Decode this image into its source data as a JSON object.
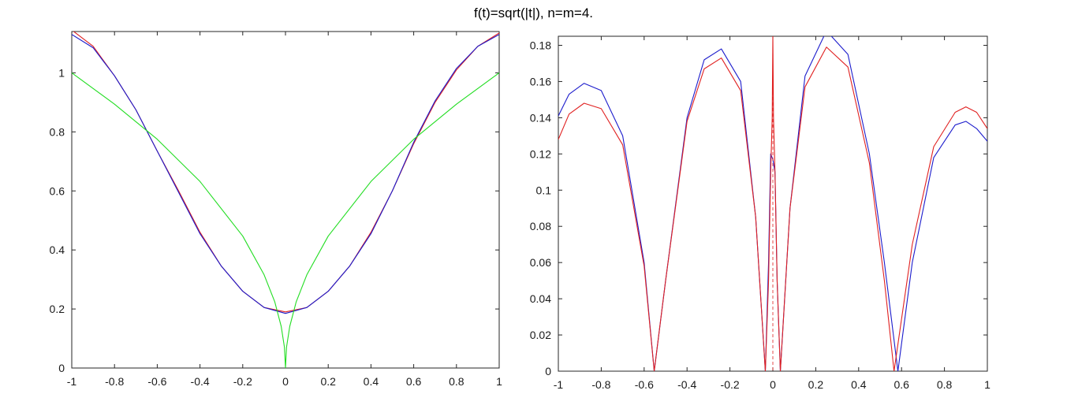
{
  "title": "f(t)=sqrt(|t|), n=m=4.",
  "colors": {
    "red": "#e02020",
    "blue": "#1c1ccc",
    "green": "#22dd22",
    "axes": "#262626"
  },
  "chart_data": [
    {
      "type": "line",
      "xlim": [
        -1,
        1
      ],
      "ylim": [
        0,
        1.14
      ],
      "xticks": [
        "-1",
        "-0.8",
        "-0.6",
        "-0.4",
        "-0.2",
        "0",
        "0.2",
        "0.4",
        "0.6",
        "0.8",
        "1"
      ],
      "yticks": [
        "0",
        "0.2",
        "0.4",
        "0.6",
        "0.8",
        "1"
      ],
      "grid": false,
      "series": [
        {
          "color": "red",
          "x": [
            -1,
            -0.9,
            -0.8,
            -0.7,
            -0.6,
            -0.5,
            -0.4,
            -0.3,
            -0.2,
            -0.1,
            0,
            0.1,
            0.2,
            0.3,
            0.4,
            0.5,
            0.6,
            0.7,
            0.8,
            0.9,
            1
          ],
          "y": [
            1.145,
            1.09,
            0.99,
            0.875,
            0.735,
            0.6,
            0.46,
            0.345,
            0.26,
            0.205,
            0.19,
            0.205,
            0.26,
            0.345,
            0.46,
            0.6,
            0.76,
            0.9,
            1.01,
            1.09,
            1.135
          ]
        },
        {
          "color": "blue",
          "x": [
            -1,
            -0.9,
            -0.8,
            -0.7,
            -0.6,
            -0.5,
            -0.4,
            -0.3,
            -0.2,
            -0.1,
            0,
            0.1,
            0.2,
            0.3,
            0.4,
            0.5,
            0.6,
            0.7,
            0.8,
            0.9,
            1
          ],
          "y": [
            1.13,
            1.085,
            0.99,
            0.875,
            0.735,
            0.595,
            0.455,
            0.345,
            0.26,
            0.205,
            0.185,
            0.205,
            0.26,
            0.345,
            0.455,
            0.6,
            0.765,
            0.905,
            1.015,
            1.09,
            1.13
          ]
        },
        {
          "color": "green",
          "function": "sqrt(|t|)",
          "x": [
            -1,
            -0.8,
            -0.6,
            -0.4,
            -0.2,
            -0.1,
            -0.05,
            -0.02,
            -0.005,
            0,
            0.005,
            0.02,
            0.05,
            0.1,
            0.2,
            0.4,
            0.6,
            0.8,
            1
          ],
          "y": [
            1,
            0.894,
            0.775,
            0.632,
            0.447,
            0.316,
            0.224,
            0.141,
            0.071,
            0,
            0.071,
            0.141,
            0.224,
            0.316,
            0.447,
            0.632,
            0.775,
            0.894,
            1
          ]
        }
      ]
    },
    {
      "type": "line",
      "xlim": [
        -1,
        1
      ],
      "ylim": [
        0,
        0.185
      ],
      "xticks": [
        "-1",
        "-0.8",
        "-0.6",
        "-0.4",
        "-0.2",
        "0",
        "0.2",
        "0.4",
        "0.6",
        "0.8",
        "1"
      ],
      "yticks": [
        "0",
        "0.02",
        "0.04",
        "0.06",
        "0.08",
        "0.1",
        "0.12",
        "0.14",
        "0.16",
        "0.18"
      ],
      "grid": false,
      "series": [
        {
          "color": "blue",
          "x": [
            -1,
            -0.95,
            -0.88,
            -0.8,
            -0.7,
            -0.6,
            -0.553,
            -0.5,
            -0.4,
            -0.32,
            -0.24,
            -0.15,
            -0.08,
            -0.035,
            -0.02,
            -0.01,
            0,
            0.01,
            0.02,
            0.035,
            0.08,
            0.15,
            0.25,
            0.35,
            0.45,
            0.52,
            0.583,
            0.65,
            0.75,
            0.85,
            0.9,
            0.95,
            1
          ],
          "y": [
            0.141,
            0.153,
            0.159,
            0.155,
            0.13,
            0.06,
            0,
            0.05,
            0.14,
            0.172,
            0.178,
            0.16,
            0.085,
            0,
            0.06,
            0.12,
            0.117,
            0.11,
            0.05,
            0,
            0.09,
            0.163,
            0.188,
            0.175,
            0.12,
            0.06,
            0,
            0.06,
            0.118,
            0.136,
            0.138,
            0.134,
            0.127
          ]
        },
        {
          "color": "red",
          "x": [
            -1,
            -0.95,
            -0.88,
            -0.8,
            -0.7,
            -0.6,
            -0.553,
            -0.5,
            -0.4,
            -0.32,
            -0.24,
            -0.15,
            -0.08,
            -0.035,
            -0.02,
            -0.01,
            -0.003,
            0,
            0.003,
            0.01,
            0.02,
            0.035,
            0.08,
            0.15,
            0.25,
            0.35,
            0.45,
            0.52,
            0.565,
            0.65,
            0.75,
            0.85,
            0.9,
            0.95,
            1
          ],
          "y": [
            0.128,
            0.142,
            0.148,
            0.145,
            0.125,
            0.058,
            0,
            0.05,
            0.138,
            0.167,
            0.173,
            0.155,
            0.085,
            0,
            0.05,
            0.11,
            0.14,
            0.185,
            0.14,
            0.11,
            0.05,
            0,
            0.09,
            0.157,
            0.179,
            0.168,
            0.115,
            0.05,
            0,
            0.07,
            0.124,
            0.143,
            0.146,
            0.143,
            0.134
          ]
        }
      ]
    }
  ]
}
